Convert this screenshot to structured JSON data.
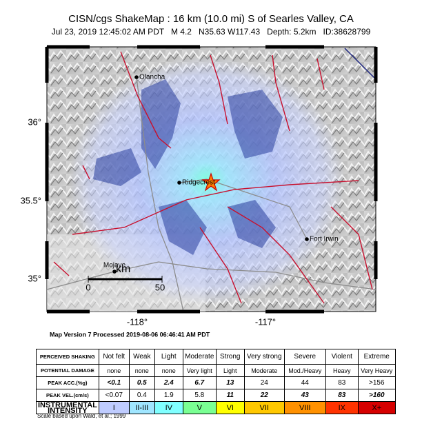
{
  "header": {
    "title": "CISN/cgs ShakeMap : 16 km (10.0 mi) S of Searles Valley, CA",
    "subtitle": "Jul 23, 2019 12:45:02 AM PDT   M 4.2   N35.63 W117.43   Depth: 5.2km   ID:38628799"
  },
  "map": {
    "places": [
      "Olancha",
      "Ridgecrest",
      "Fort Irwin",
      "Mojave"
    ],
    "lat_labels": [
      "36°",
      "35.5°",
      "35°"
    ],
    "lon_labels": [
      "-118°",
      "-117°"
    ],
    "scale": {
      "unit": "km",
      "ticks": [
        "0",
        "50"
      ]
    }
  },
  "processed": "Map Version 7 Processed 2019-08-06 06:46:41 AM PDT",
  "legend": {
    "rows": [
      [
        "PERCEIVED SHAKING",
        "Not felt",
        "Weak",
        "Light",
        "Moderate",
        "Strong",
        "Very strong",
        "Severe",
        "Violent",
        "Extreme"
      ],
      [
        "POTENTIAL DAMAGE",
        "none",
        "none",
        "none",
        "Very light",
        "Light",
        "Moderate",
        "Mod./Heavy",
        "Heavy",
        "Very Heavy"
      ],
      [
        "PEAK ACC.(%g)",
        "<0.1",
        "0.5",
        "2.4",
        "6.7",
        "13",
        "24",
        "44",
        "83",
        ">156"
      ],
      [
        "PEAK VEL.(cm/s)",
        "<0.07",
        "0.4",
        "1.9",
        "5.8",
        "11",
        "22",
        "43",
        "83",
        ">160"
      ],
      [
        "INSTRUMENTAL INTENSITY",
        "I",
        "II-III",
        "IV",
        "V",
        "VI",
        "VII",
        "VIII",
        "IX",
        "X+"
      ]
    ]
  },
  "footnote": "Scale based upon Wald, et al.; 1999"
}
